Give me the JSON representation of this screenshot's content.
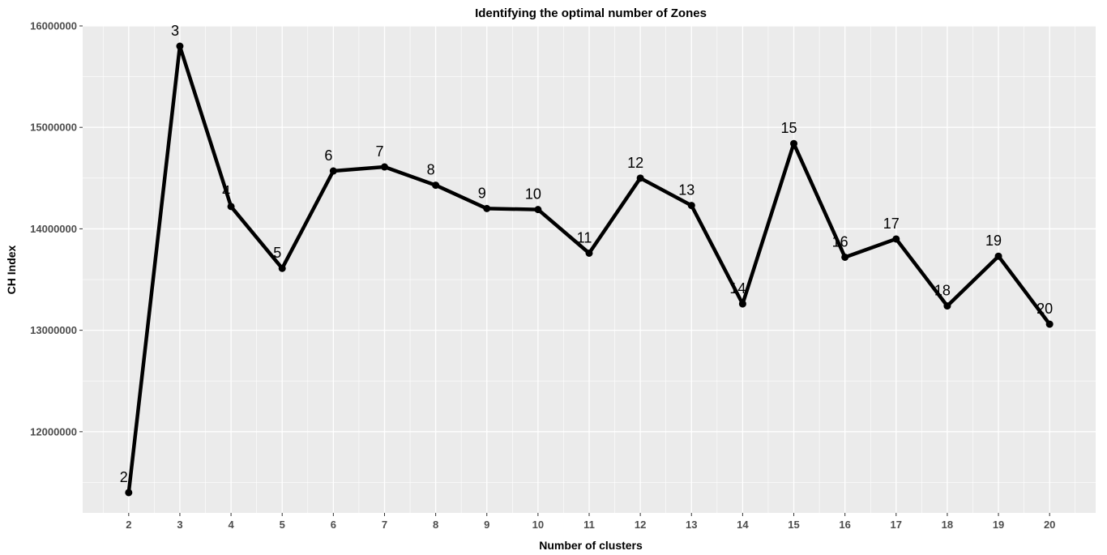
{
  "chart_data": {
    "type": "line",
    "title": "Identifying the optimal number of Zones",
    "xlabel": "Number of clusters",
    "ylabel": "CH Index",
    "x": [
      2,
      3,
      4,
      5,
      6,
      7,
      8,
      9,
      10,
      11,
      12,
      13,
      14,
      15,
      16,
      17,
      18,
      19,
      20
    ],
    "y": [
      11400000,
      15800000,
      14220000,
      13610000,
      14570000,
      14610000,
      14430000,
      14200000,
      14190000,
      13760000,
      14500000,
      14230000,
      13260000,
      14840000,
      13720000,
      13900000,
      13240000,
      13730000,
      13060000
    ],
    "point_labels": [
      "2",
      "3",
      "4",
      "5",
      "6",
      "7",
      "8",
      "9",
      "10",
      "11",
      "12",
      "13",
      "14",
      "15",
      "16",
      "17",
      "18",
      "19",
      "20"
    ],
    "x_ticks": [
      "2",
      "3",
      "4",
      "5",
      "6",
      "7",
      "8",
      "9",
      "10",
      "11",
      "12",
      "13",
      "14",
      "15",
      "16",
      "17",
      "18",
      "19",
      "20"
    ],
    "y_ticks": [
      12000000,
      13000000,
      14000000,
      15000000,
      16000000
    ],
    "y_tick_labels": [
      "12000000",
      "13000000",
      "14000000",
      "15000000",
      "16000000"
    ],
    "xlim": [
      1.1,
      20.9
    ],
    "ylim": [
      11200000,
      16000000
    ],
    "grid": true,
    "legend": "none",
    "colors": {
      "panel": "#ebebeb",
      "grid": "#ffffff",
      "line": "#000000",
      "tick_text": "#4d4d4d"
    }
  }
}
